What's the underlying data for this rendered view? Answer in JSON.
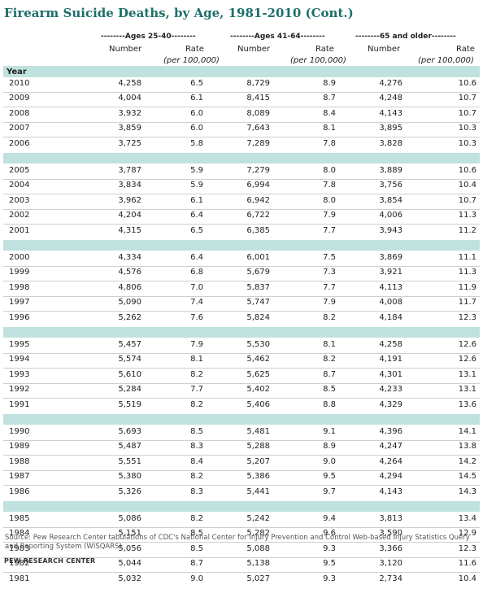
{
  "title": "Firearm Suicide Deaths, by Age, 1981-2010 (Cont.)",
  "groups": [
    "--------Ages 25-40--------",
    "--------Ages 41-64--------",
    "--------65 and older--------"
  ],
  "number_label": "Number",
  "rate_label": "Rate",
  "rate_sub_label": "(per 100,000)",
  "year_label": "Year",
  "rows": [
    {
      "year": "2010",
      "n1": "4,258",
      "r1": "6.5",
      "n2": "8,729",
      "r2": "8.9",
      "n3": "4,276",
      "r3": "10.6"
    },
    {
      "year": "2009",
      "n1": "4,004",
      "r1": "6.1",
      "n2": "8,415",
      "r2": "8.7",
      "n3": "4,248",
      "r3": "10.7"
    },
    {
      "year": "2008",
      "n1": "3,932",
      "r1": "6.0",
      "n2": "8,089",
      "r2": "8.4",
      "n3": "4,143",
      "r3": "10.7"
    },
    {
      "year": "2007",
      "n1": "3,859",
      "r1": "6.0",
      "n2": "7,643",
      "r2": "8.1",
      "n3": "3,895",
      "r3": "10.3"
    },
    {
      "year": "2006",
      "n1": "3,725",
      "r1": "5.8",
      "n2": "7,289",
      "r2": "7.8",
      "n3": "3,828",
      "r3": "10.3"
    },
    {
      "year": "2005",
      "n1": "3,787",
      "r1": "5.9",
      "n2": "7,279",
      "r2": "8.0",
      "n3": "3,889",
      "r3": "10.6"
    },
    {
      "year": "2004",
      "n1": "3,834",
      "r1": "5.9",
      "n2": "6,994",
      "r2": "7.8",
      "n3": "3,756",
      "r3": "10.4"
    },
    {
      "year": "2003",
      "n1": "3,962",
      "r1": "6.1",
      "n2": "6,942",
      "r2": "8.0",
      "n3": "3,854",
      "r3": "10.7"
    },
    {
      "year": "2002",
      "n1": "4,204",
      "r1": "6.4",
      "n2": "6,722",
      "r2": "7.9",
      "n3": "4,006",
      "r3": "11.3"
    },
    {
      "year": "2001",
      "n1": "4,315",
      "r1": "6.5",
      "n2": "6,385",
      "r2": "7.7",
      "n3": "3,943",
      "r3": "11.2"
    },
    {
      "year": "2000",
      "n1": "4,334",
      "r1": "6.4",
      "n2": "6,001",
      "r2": "7.5",
      "n3": "3,869",
      "r3": "11.1"
    },
    {
      "year": "1999",
      "n1": "4,576",
      "r1": "6.8",
      "n2": "5,679",
      "r2": "7.3",
      "n3": "3,921",
      "r3": "11.3"
    },
    {
      "year": "1998",
      "n1": "4,806",
      "r1": "7.0",
      "n2": "5,837",
      "r2": "7.7",
      "n3": "4,113",
      "r3": "11.9"
    },
    {
      "year": "1997",
      "n1": "5,090",
      "r1": "7.4",
      "n2": "5,747",
      "r2": "7.9",
      "n3": "4,008",
      "r3": "11.7"
    },
    {
      "year": "1996",
      "n1": "5,262",
      "r1": "7.6",
      "n2": "5,824",
      "r2": "8.2",
      "n3": "4,184",
      "r3": "12.3"
    },
    {
      "year": "1995",
      "n1": "5,457",
      "r1": "7.9",
      "n2": "5,530",
      "r2": "8.1",
      "n3": "4,258",
      "r3": "12.6"
    },
    {
      "year": "1994",
      "n1": "5,574",
      "r1": "8.1",
      "n2": "5,462",
      "r2": "8.2",
      "n3": "4,191",
      "r3": "12.6"
    },
    {
      "year": "1993",
      "n1": "5,610",
      "r1": "8.2",
      "n2": "5,625",
      "r2": "8.7",
      "n3": "4,301",
      "r3": "13.1"
    },
    {
      "year": "1992",
      "n1": "5,284",
      "r1": "7.7",
      "n2": "5,402",
      "r2": "8.5",
      "n3": "4,233",
      "r3": "13.1"
    },
    {
      "year": "1991",
      "n1": "5,519",
      "r1": "8.2",
      "n2": "5,406",
      "r2": "8.8",
      "n3": "4,329",
      "r3": "13.6"
    },
    {
      "year": "1990",
      "n1": "5,693",
      "r1": "8.5",
      "n2": "5,481",
      "r2": "9.1",
      "n3": "4,396",
      "r3": "14.1"
    },
    {
      "year": "1989",
      "n1": "5,487",
      "r1": "8.3",
      "n2": "5,288",
      "r2": "8.9",
      "n3": "4,247",
      "r3": "13.8"
    },
    {
      "year": "1988",
      "n1": "5,551",
      "r1": "8.4",
      "n2": "5,207",
      "r2": "9.0",
      "n3": "4,264",
      "r3": "14.2"
    },
    {
      "year": "1987",
      "n1": "5,380",
      "r1": "8.2",
      "n2": "5,386",
      "r2": "9.5",
      "n3": "4,294",
      "r3": "14.5"
    },
    {
      "year": "1986",
      "n1": "5,326",
      "r1": "8.3",
      "n2": "5,441",
      "r2": "9.7",
      "n3": "4,143",
      "r3": "14.3"
    },
    {
      "year": "1985",
      "n1": "5,086",
      "r1": "8.2",
      "n2": "5,242",
      "r2": "9.4",
      "n3": "3,813",
      "r3": "13.4"
    },
    {
      "year": "1984",
      "n1": "5,151",
      "r1": "8.5",
      "n2": "5,282",
      "r2": "9.6",
      "n3": "3,590",
      "r3": "12.9"
    },
    {
      "year": "1983",
      "n1": "5,056",
      "r1": "8.5",
      "n2": "5,088",
      "r2": "9.3",
      "n3": "3,366",
      "r3": "12.3"
    },
    {
      "year": "1982",
      "n1": "5,044",
      "r1": "8.7",
      "n2": "5,138",
      "r2": "9.5",
      "n3": "3,120",
      "r3": "11.6"
    },
    {
      "year": "1981",
      "n1": "5,032",
      "r1": "9.0",
      "n2": "5,027",
      "r2": "9.3",
      "n3": "2,734",
      "r3": "10.4"
    }
  ],
  "source": "Source: Pew Research Center tabulations of CDC's National Center for Injury Prevention and Control Web-based Injury Statistics Query and Reporting System (WISQARS)",
  "credit": "PEW RESEARCH CENTER",
  "colors": {
    "title": "#1c6f6a",
    "band": "#bfe2df"
  }
}
